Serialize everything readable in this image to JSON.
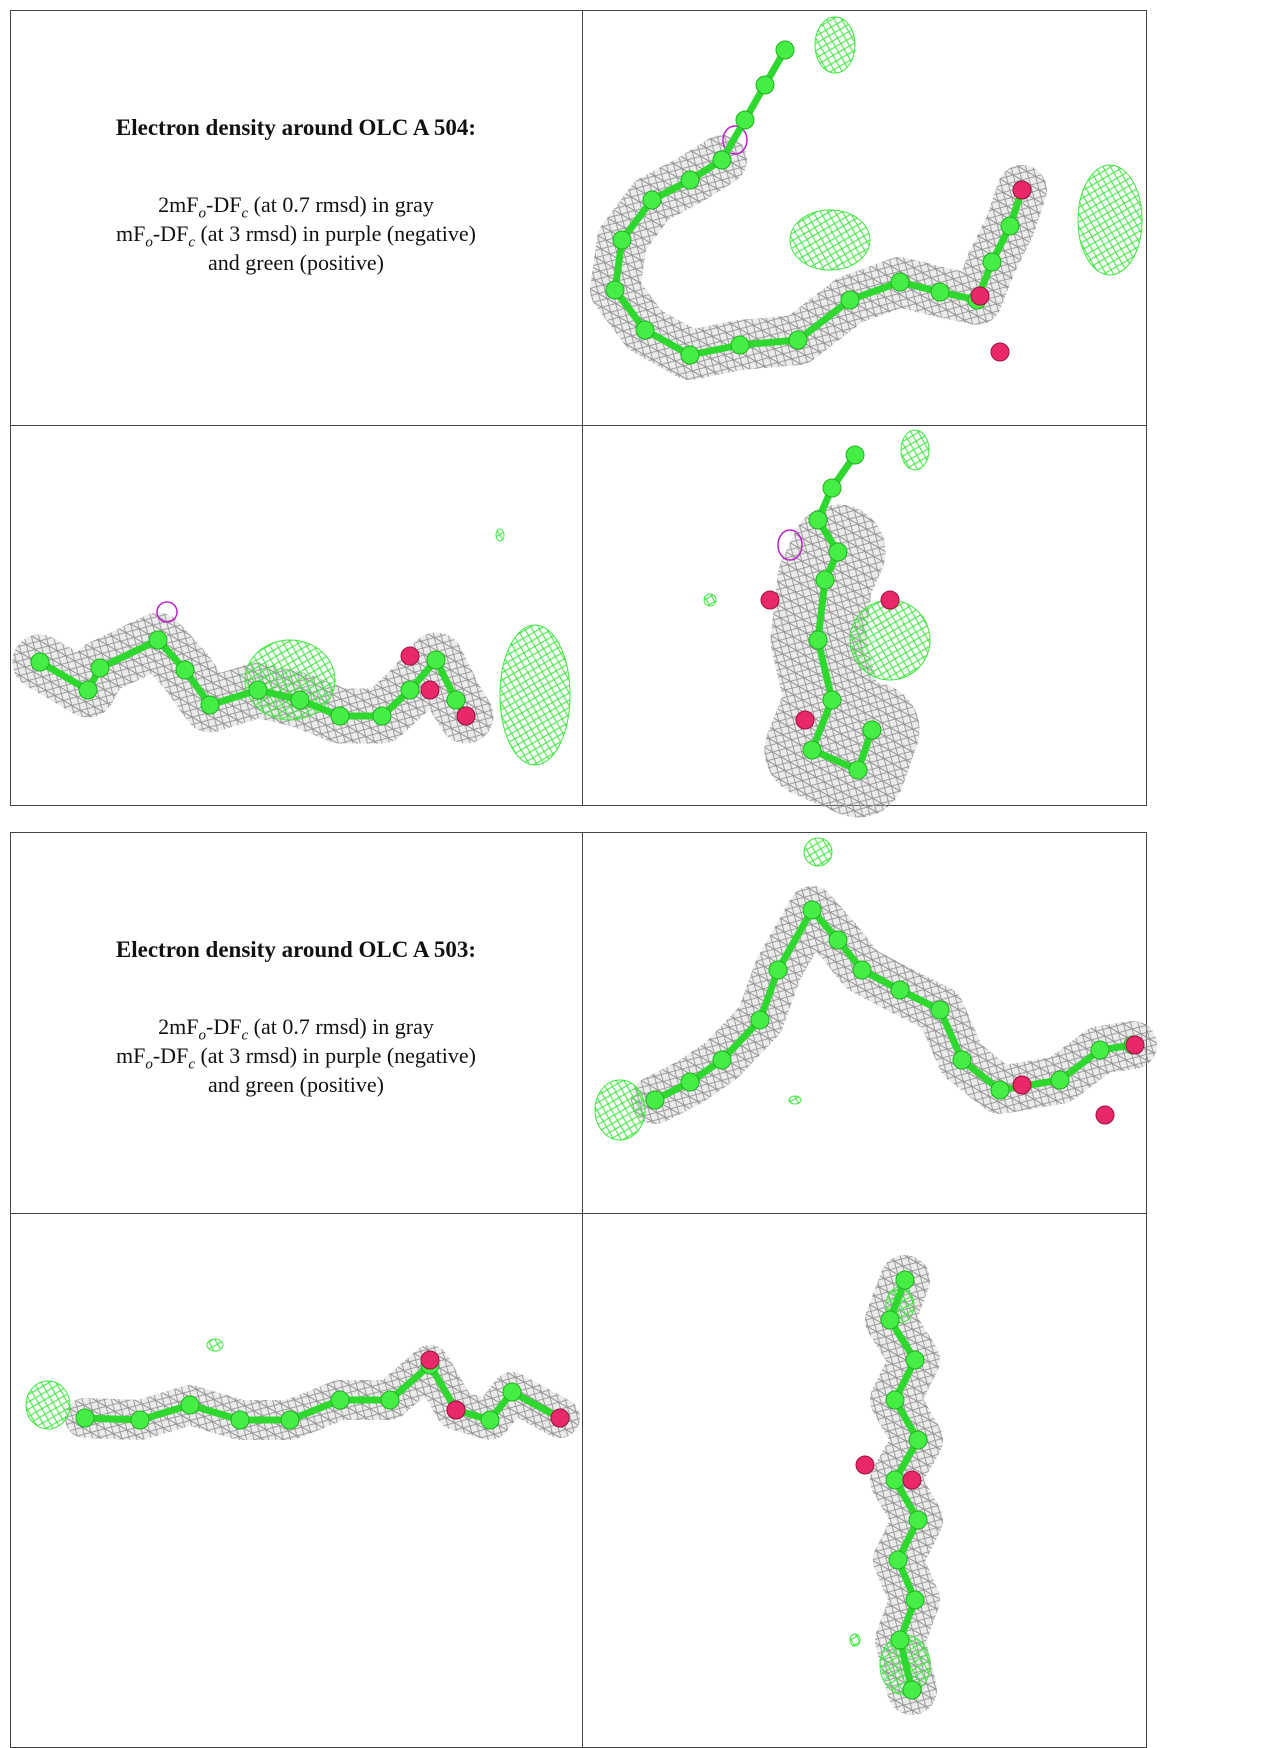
{
  "panels": [
    {
      "title": "Electron density around OLC A 504:",
      "lines": [
        [
          "2mF",
          "o",
          "-DF",
          "c",
          " (at 0.7 rmsd) in gray"
        ],
        [
          "mF",
          "o",
          "-DF",
          "c",
          " (at 3 rmsd) in purple (negative)"
        ],
        [
          "and green (positive)"
        ]
      ]
    },
    {
      "title": "Electron density around OLC A 503:",
      "lines": [
        [
          "2mF",
          "o",
          "-DF",
          "c",
          " (at 0.7 rmsd) in gray"
        ],
        [
          "mF",
          "o",
          "-DF",
          "c",
          " (at 3 rmsd) in purple (negative)"
        ],
        [
          "and green (positive)"
        ]
      ]
    }
  ]
}
